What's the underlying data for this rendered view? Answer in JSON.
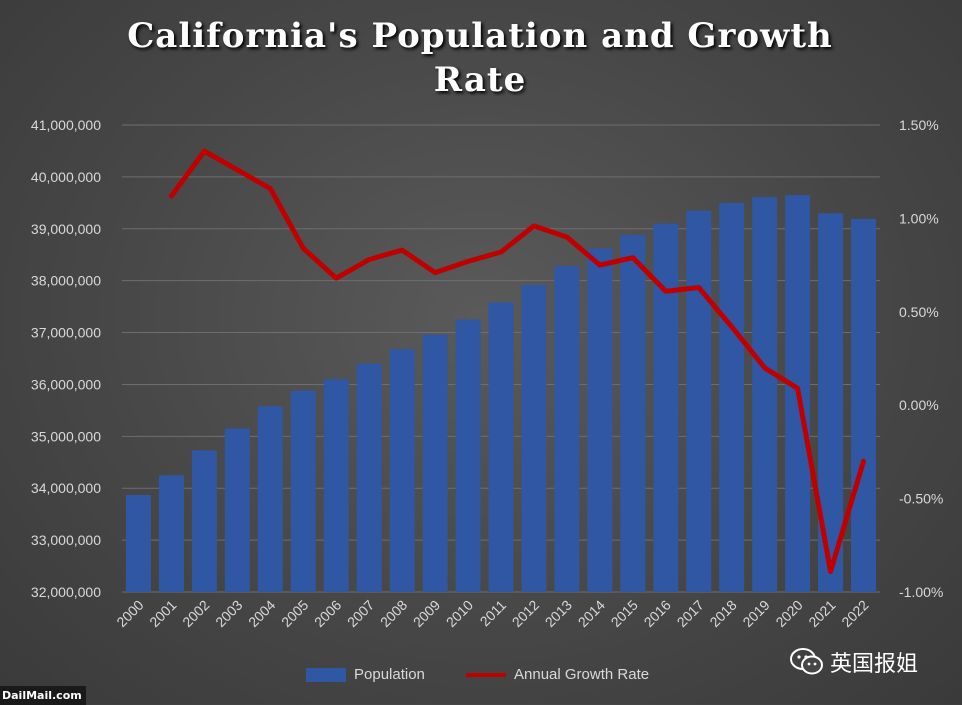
{
  "chart_data": {
    "type": "bar",
    "title": "California's Population and Growth Rate",
    "categories": [
      "2000",
      "2001",
      "2002",
      "2003",
      "2004",
      "2005",
      "2006",
      "2007",
      "2008",
      "2009",
      "2010",
      "2011",
      "2012",
      "2013",
      "2014",
      "2015",
      "2016",
      "2017",
      "2018",
      "2019",
      "2020",
      "2021",
      "2022"
    ],
    "series": [
      {
        "name": "Population",
        "type": "bar",
        "axis": "left",
        "color": "#2f57a3",
        "values": [
          33870000,
          34250000,
          34730000,
          35150000,
          35580000,
          35880000,
          36100000,
          36400000,
          36680000,
          36960000,
          37250000,
          37580000,
          37920000,
          38280000,
          38620000,
          38880000,
          39100000,
          39350000,
          39500000,
          39610000,
          39650000,
          39300000,
          39190000
        ]
      },
      {
        "name": "Annual Growth Rate",
        "type": "line",
        "axis": "right",
        "color": "#c00000",
        "values": [
          null,
          1.12,
          1.36,
          1.26,
          1.16,
          0.84,
          0.68,
          0.78,
          0.83,
          0.71,
          0.77,
          0.82,
          0.96,
          0.9,
          0.75,
          0.79,
          0.61,
          0.63,
          0.42,
          0.2,
          0.09,
          -0.89,
          -0.3
        ]
      }
    ],
    "y_left": {
      "ylim": [
        32000000,
        41000000
      ],
      "ticks": [
        32000000,
        33000000,
        34000000,
        35000000,
        36000000,
        37000000,
        38000000,
        39000000,
        40000000,
        41000000
      ],
      "tick_labels": [
        "32,000,000",
        "33,000,000",
        "34,000,000",
        "35,000,000",
        "36,000,000",
        "37,000,000",
        "38,000,000",
        "39,000,000",
        "40,000,000",
        "41,000,000"
      ]
    },
    "y_right": {
      "ylim": [
        -1.0,
        1.5
      ],
      "ticks": [
        -1.0,
        -0.5,
        0.0,
        0.5,
        1.0,
        1.5
      ],
      "tick_labels": [
        "-1.00%",
        "-0.50%",
        "0.00%",
        "0.50%",
        "1.00%",
        "1.50%"
      ]
    },
    "grid": true,
    "legend_position": "bottom"
  },
  "legend": {
    "population_label": "Population",
    "growth_label": "Annual Growth Rate"
  },
  "watermark": "英国报姐",
  "credit": "DailMail.com"
}
